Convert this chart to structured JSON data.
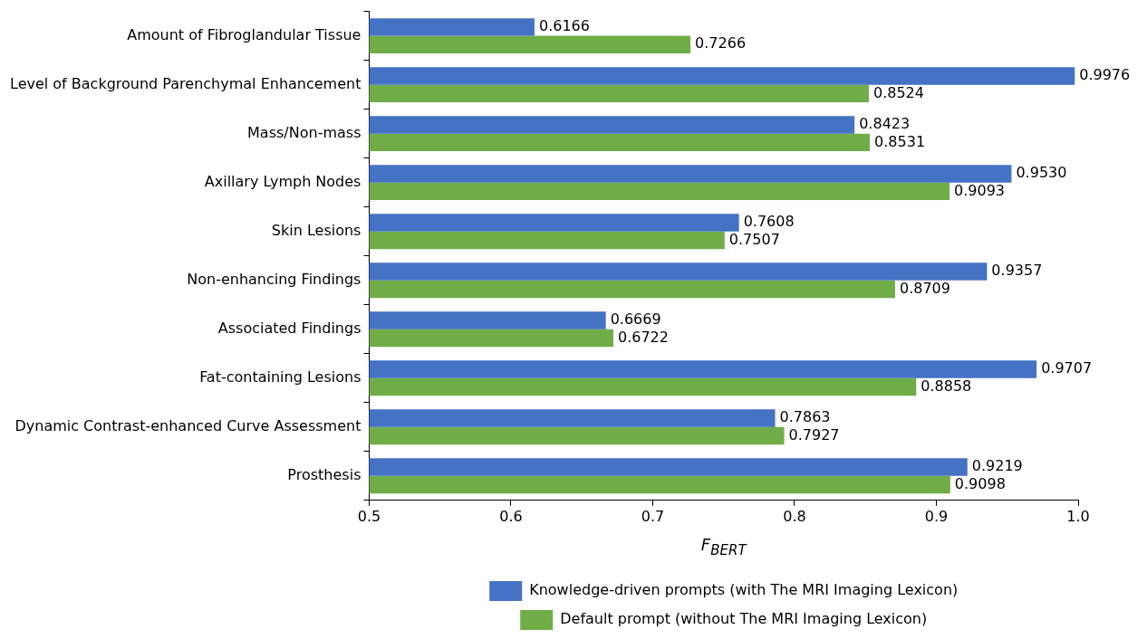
{
  "chart_data": {
    "type": "bar",
    "orientation": "horizontal",
    "xlabel": "F$_{BERT}$",
    "categories": [
      "Amount of Fibroglandular Tissue",
      "Level of Background Parenchymal Enhancement",
      "Mass/Non-mass",
      "Axillary Lymph Nodes",
      "Skin Lesions",
      "Non-enhancing Findings",
      "Associated Findings",
      "Fat-containing Lesions",
      "Dynamic Contrast-enhanced Curve Assessment",
      "Prosthesis"
    ],
    "series": [
      {
        "name": "Knowledge-driven prompts (with The MRI Imaging Lexicon)",
        "color": "#4472c4",
        "values": [
          0.6166,
          0.9976,
          0.8423,
          0.953,
          0.7608,
          0.9357,
          0.6669,
          0.9707,
          0.7863,
          0.9219
        ],
        "value_labels": [
          "0.6166",
          "0.9976",
          "0.8423",
          "0.9530",
          "0.7608",
          "0.9357",
          "0.6669",
          "0.9707",
          "0.7863",
          "0.9219"
        ]
      },
      {
        "name": "Default prompt (without The MRI Imaging Lexicon)",
        "color": "#70ad47",
        "values": [
          0.7266,
          0.8524,
          0.8531,
          0.9093,
          0.7507,
          0.8709,
          0.6722,
          0.8858,
          0.7927,
          0.9098
        ],
        "value_labels": [
          "0.7266",
          "0.8524",
          "0.8531",
          "0.9093",
          "0.7507",
          "0.8709",
          "0.6722",
          "0.8858",
          "0.7927",
          "0.9098"
        ]
      }
    ],
    "xlim": [
      0.5,
      1.0
    ],
    "xticks": [
      0.5,
      0.6,
      0.7,
      0.8,
      0.9,
      {
        "value": 1,
        "label": "1.0"
      }
    ],
    "legend": "bottom"
  }
}
